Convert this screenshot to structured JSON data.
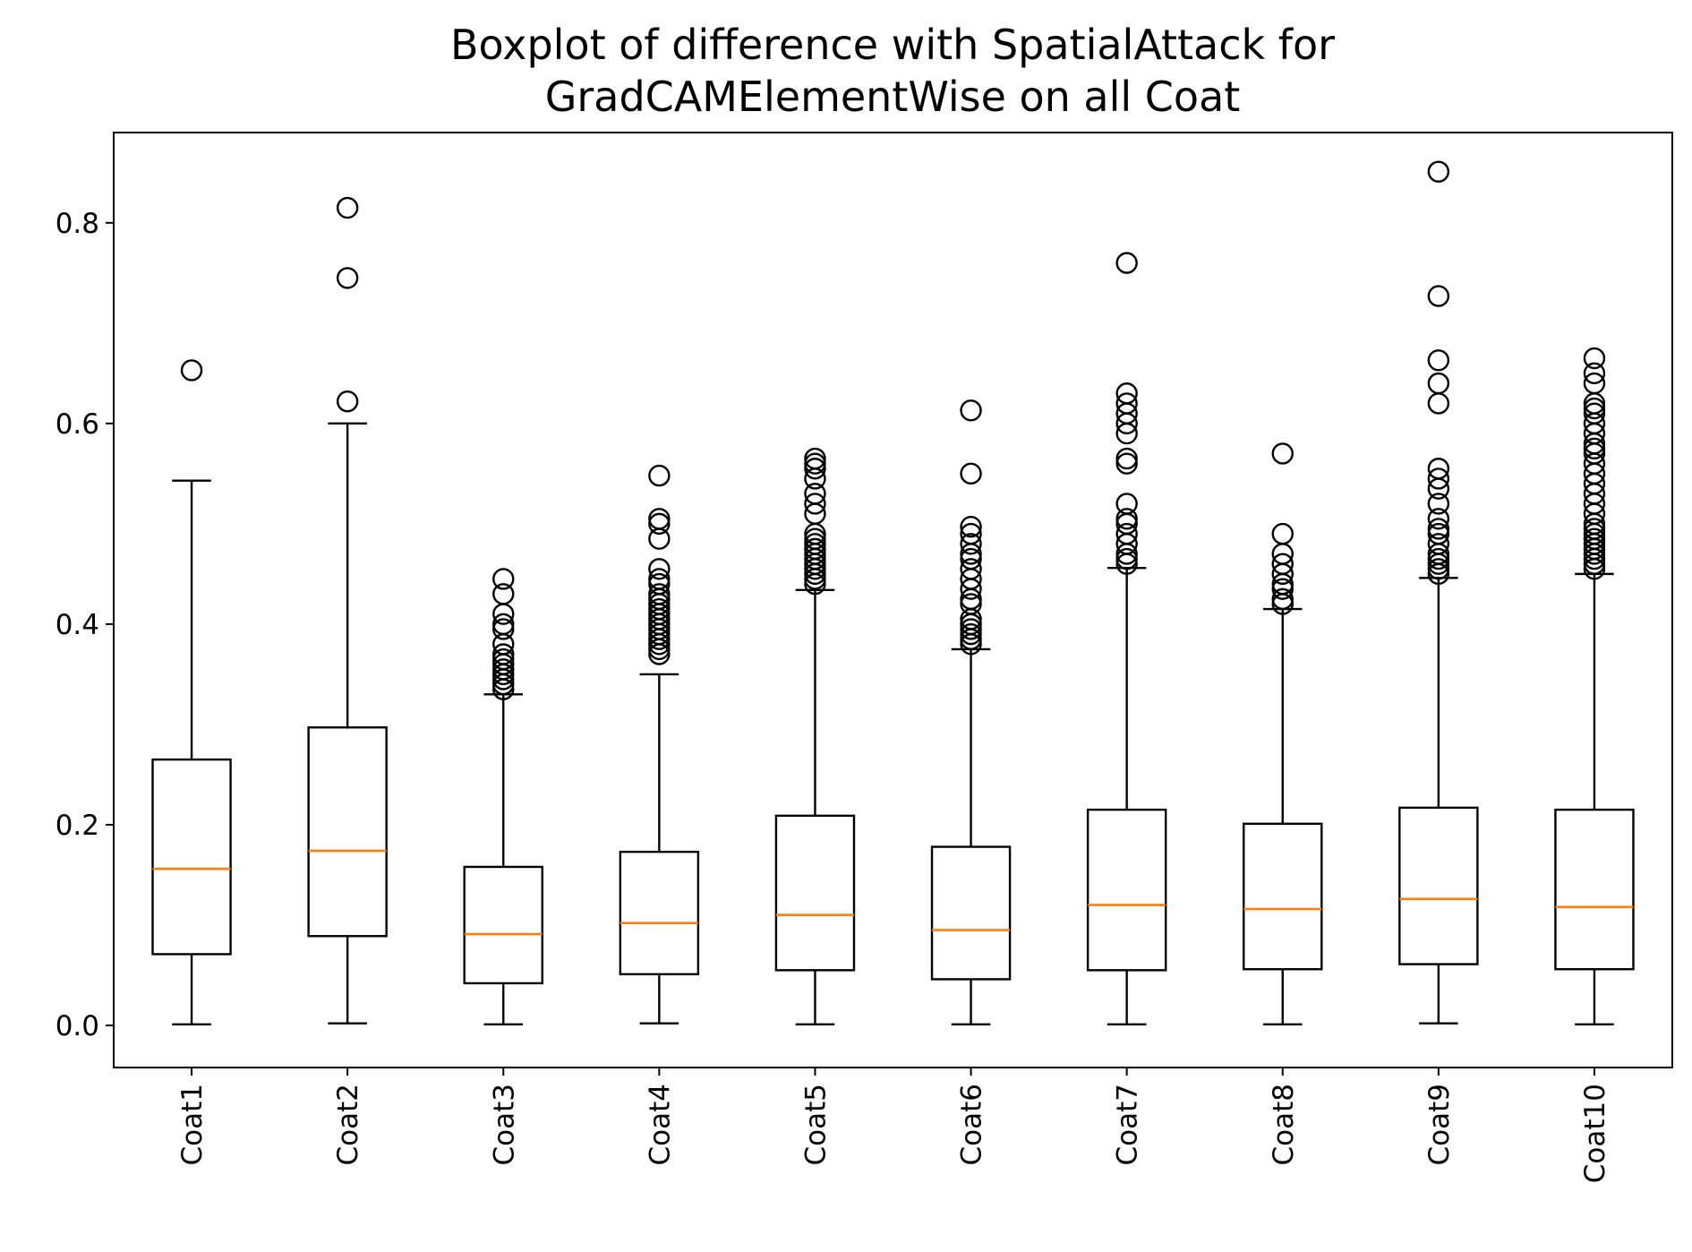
{
  "chart_data": {
    "type": "boxplot",
    "title": [
      "Boxplot of difference with SpatialAttack for",
      "GradCAMElementWise on all Coat"
    ],
    "xlabel": "",
    "ylabel": "",
    "ylim": [
      -0.042,
      0.89
    ],
    "yticks": [
      0.0,
      0.2,
      0.4,
      0.6,
      0.8
    ],
    "ytick_labels": [
      "0.0",
      "0.2",
      "0.4",
      "0.6",
      "0.8"
    ],
    "grid": false,
    "colors": {
      "median": "#ff7f0e",
      "box": "#000000",
      "flier": "#000000"
    },
    "categories": [
      "Coat1",
      "Coat2",
      "Coat3",
      "Coat4",
      "Coat5",
      "Coat6",
      "Coat7",
      "Coat8",
      "Coat9",
      "Coat10"
    ],
    "boxes": [
      {
        "whislo": 0.001,
        "q1": 0.071,
        "med": 0.156,
        "q3": 0.265,
        "whishi": 0.543,
        "fliers": [
          0.653
        ]
      },
      {
        "whislo": 0.002,
        "q1": 0.089,
        "med": 0.174,
        "q3": 0.297,
        "whishi": 0.6,
        "fliers": [
          0.622,
          0.745,
          0.815
        ]
      },
      {
        "whislo": 0.001,
        "q1": 0.042,
        "med": 0.091,
        "q3": 0.158,
        "whishi": 0.33,
        "fliers": [
          0.335,
          0.34,
          0.345,
          0.35,
          0.355,
          0.36,
          0.365,
          0.37,
          0.38,
          0.395,
          0.4,
          0.41,
          0.43,
          0.445
        ]
      },
      {
        "whislo": 0.002,
        "q1": 0.051,
        "med": 0.102,
        "q3": 0.173,
        "whishi": 0.35,
        "fliers": [
          0.37,
          0.375,
          0.38,
          0.385,
          0.39,
          0.395,
          0.4,
          0.405,
          0.41,
          0.415,
          0.42,
          0.425,
          0.43,
          0.44,
          0.445,
          0.455,
          0.485,
          0.5,
          0.505,
          0.548
        ]
      },
      {
        "whislo": 0.001,
        "q1": 0.055,
        "med": 0.11,
        "q3": 0.209,
        "whishi": 0.434,
        "fliers": [
          0.44,
          0.445,
          0.45,
          0.455,
          0.46,
          0.465,
          0.47,
          0.475,
          0.48,
          0.485,
          0.49,
          0.51,
          0.52,
          0.53,
          0.545,
          0.555,
          0.56,
          0.565
        ]
      },
      {
        "whislo": 0.001,
        "q1": 0.046,
        "med": 0.095,
        "q3": 0.178,
        "whishi": 0.375,
        "fliers": [
          0.38,
          0.385,
          0.39,
          0.395,
          0.4,
          0.405,
          0.42,
          0.425,
          0.435,
          0.445,
          0.455,
          0.465,
          0.47,
          0.48,
          0.49,
          0.497,
          0.55,
          0.613
        ]
      },
      {
        "whislo": 0.001,
        "q1": 0.055,
        "med": 0.12,
        "q3": 0.215,
        "whishi": 0.456,
        "fliers": [
          0.46,
          0.465,
          0.47,
          0.48,
          0.49,
          0.5,
          0.505,
          0.52,
          0.56,
          0.565,
          0.59,
          0.6,
          0.61,
          0.62,
          0.63,
          0.76
        ]
      },
      {
        "whislo": 0.001,
        "q1": 0.056,
        "med": 0.116,
        "q3": 0.201,
        "whishi": 0.415,
        "fliers": [
          0.42,
          0.425,
          0.435,
          0.44,
          0.45,
          0.46,
          0.47,
          0.49,
          0.57
        ]
      },
      {
        "whislo": 0.002,
        "q1": 0.061,
        "med": 0.126,
        "q3": 0.217,
        "whishi": 0.446,
        "fliers": [
          0.45,
          0.455,
          0.46,
          0.465,
          0.47,
          0.48,
          0.49,
          0.495,
          0.505,
          0.52,
          0.535,
          0.545,
          0.555,
          0.62,
          0.64,
          0.663,
          0.727,
          0.851
        ]
      },
      {
        "whislo": 0.001,
        "q1": 0.056,
        "med": 0.118,
        "q3": 0.215,
        "whishi": 0.45,
        "fliers": [
          0.455,
          0.46,
          0.465,
          0.47,
          0.475,
          0.48,
          0.485,
          0.49,
          0.495,
          0.5,
          0.51,
          0.52,
          0.53,
          0.54,
          0.55,
          0.56,
          0.57,
          0.575,
          0.58,
          0.59,
          0.6,
          0.61,
          0.615,
          0.62,
          0.64,
          0.65,
          0.665
        ]
      }
    ]
  }
}
